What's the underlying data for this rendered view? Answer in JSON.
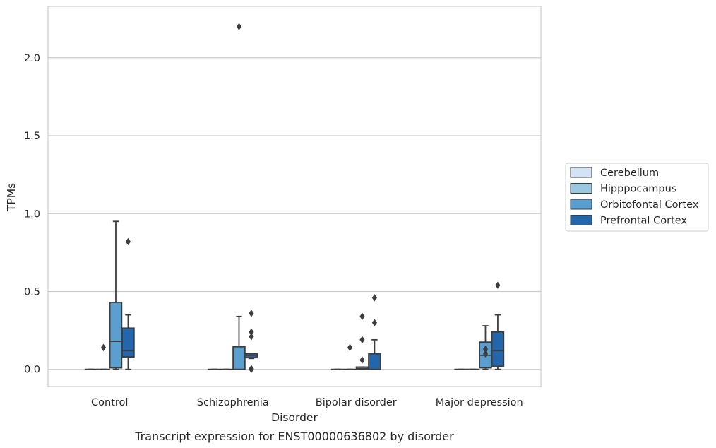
{
  "chart_data": {
    "type": "box",
    "title": "",
    "caption": "Transcript expression for ENST00000636802 by disorder",
    "xlabel": "Disorder",
    "ylabel": "TPMs",
    "ylim": [
      -0.11,
      2.33
    ],
    "yticks": [
      0.0,
      0.5,
      1.0,
      1.5,
      2.0
    ],
    "ytick_labels": [
      "0.0",
      "0.5",
      "1.0",
      "1.5",
      "2.0"
    ],
    "grid": "horizontal",
    "legend_position": "right",
    "categories": [
      "Control",
      "Schizophrenia",
      "Bipolar disorder",
      "Major depression"
    ],
    "series": [
      {
        "name": "Cerebellum",
        "color": "#d2e3f3",
        "boxes": [
          {
            "min": 0,
            "q1": 0,
            "median": 0,
            "q3": 0,
            "max": 0,
            "outliers": []
          },
          {
            "min": 0,
            "q1": 0,
            "median": 0,
            "q3": 0,
            "max": 0,
            "outliers": []
          },
          {
            "min": 0,
            "q1": 0,
            "median": 0,
            "q3": 0,
            "max": 0,
            "outliers": []
          },
          {
            "min": 0,
            "q1": 0,
            "median": 0,
            "q3": 0,
            "max": 0,
            "outliers": []
          }
        ]
      },
      {
        "name": "Hipppocampus",
        "color": "#9ac8e1",
        "boxes": [
          {
            "min": 0,
            "q1": 0,
            "median": 0,
            "q3": 0,
            "max": 0,
            "outliers": [
              0.14
            ]
          },
          {
            "min": 0,
            "q1": 0,
            "median": 0,
            "q3": 0,
            "max": 0,
            "outliers": []
          },
          {
            "min": 0,
            "q1": 0,
            "median": 0,
            "q3": 0,
            "max": 0,
            "outliers": [
              0.14
            ]
          },
          {
            "min": 0,
            "q1": 0,
            "median": 0,
            "q3": 0,
            "max": 0,
            "outliers": []
          }
        ]
      },
      {
        "name": "Orbitofontal Cortex",
        "color": "#5a9fcf",
        "boxes": [
          {
            "min": 0,
            "q1": 0.01,
            "median": 0.18,
            "q3": 0.43,
            "max": 0.95,
            "outliers": []
          },
          {
            "min": 0,
            "q1": 0,
            "median": 0,
            "q3": 0.145,
            "max": 0.34,
            "outliers": [
              2.2
            ]
          },
          {
            "min": 0,
            "q1": 0,
            "median": 0.005,
            "q3": 0.015,
            "max": 0.015,
            "outliers": [
              0.34,
              0.19,
              0.06
            ]
          },
          {
            "min": 0,
            "q1": 0.01,
            "median": 0.09,
            "q3": 0.175,
            "max": 0.28,
            "outliers": [
              0.13,
              0.1
            ]
          }
        ]
      },
      {
        "name": "Prefrontal Cortex",
        "color": "#2466ac",
        "boxes": [
          {
            "min": 0,
            "q1": 0.08,
            "median": 0.12,
            "q3": 0.265,
            "max": 0.35,
            "outliers": [
              0.82
            ]
          },
          {
            "min": 0.07,
            "q1": 0.075,
            "median": 0.09,
            "q3": 0.1,
            "max": 0.1,
            "outliers": [
              0.36,
              0.24,
              0.21,
              0.005,
              0.0
            ]
          },
          {
            "min": 0,
            "q1": 0,
            "median": 0,
            "q3": 0.1,
            "max": 0.19,
            "outliers": [
              0.46,
              0.3
            ]
          },
          {
            "min": 0,
            "q1": 0.02,
            "median": 0.12,
            "q3": 0.24,
            "max": 0.35,
            "outliers": [
              0.54
            ]
          }
        ]
      }
    ]
  }
}
